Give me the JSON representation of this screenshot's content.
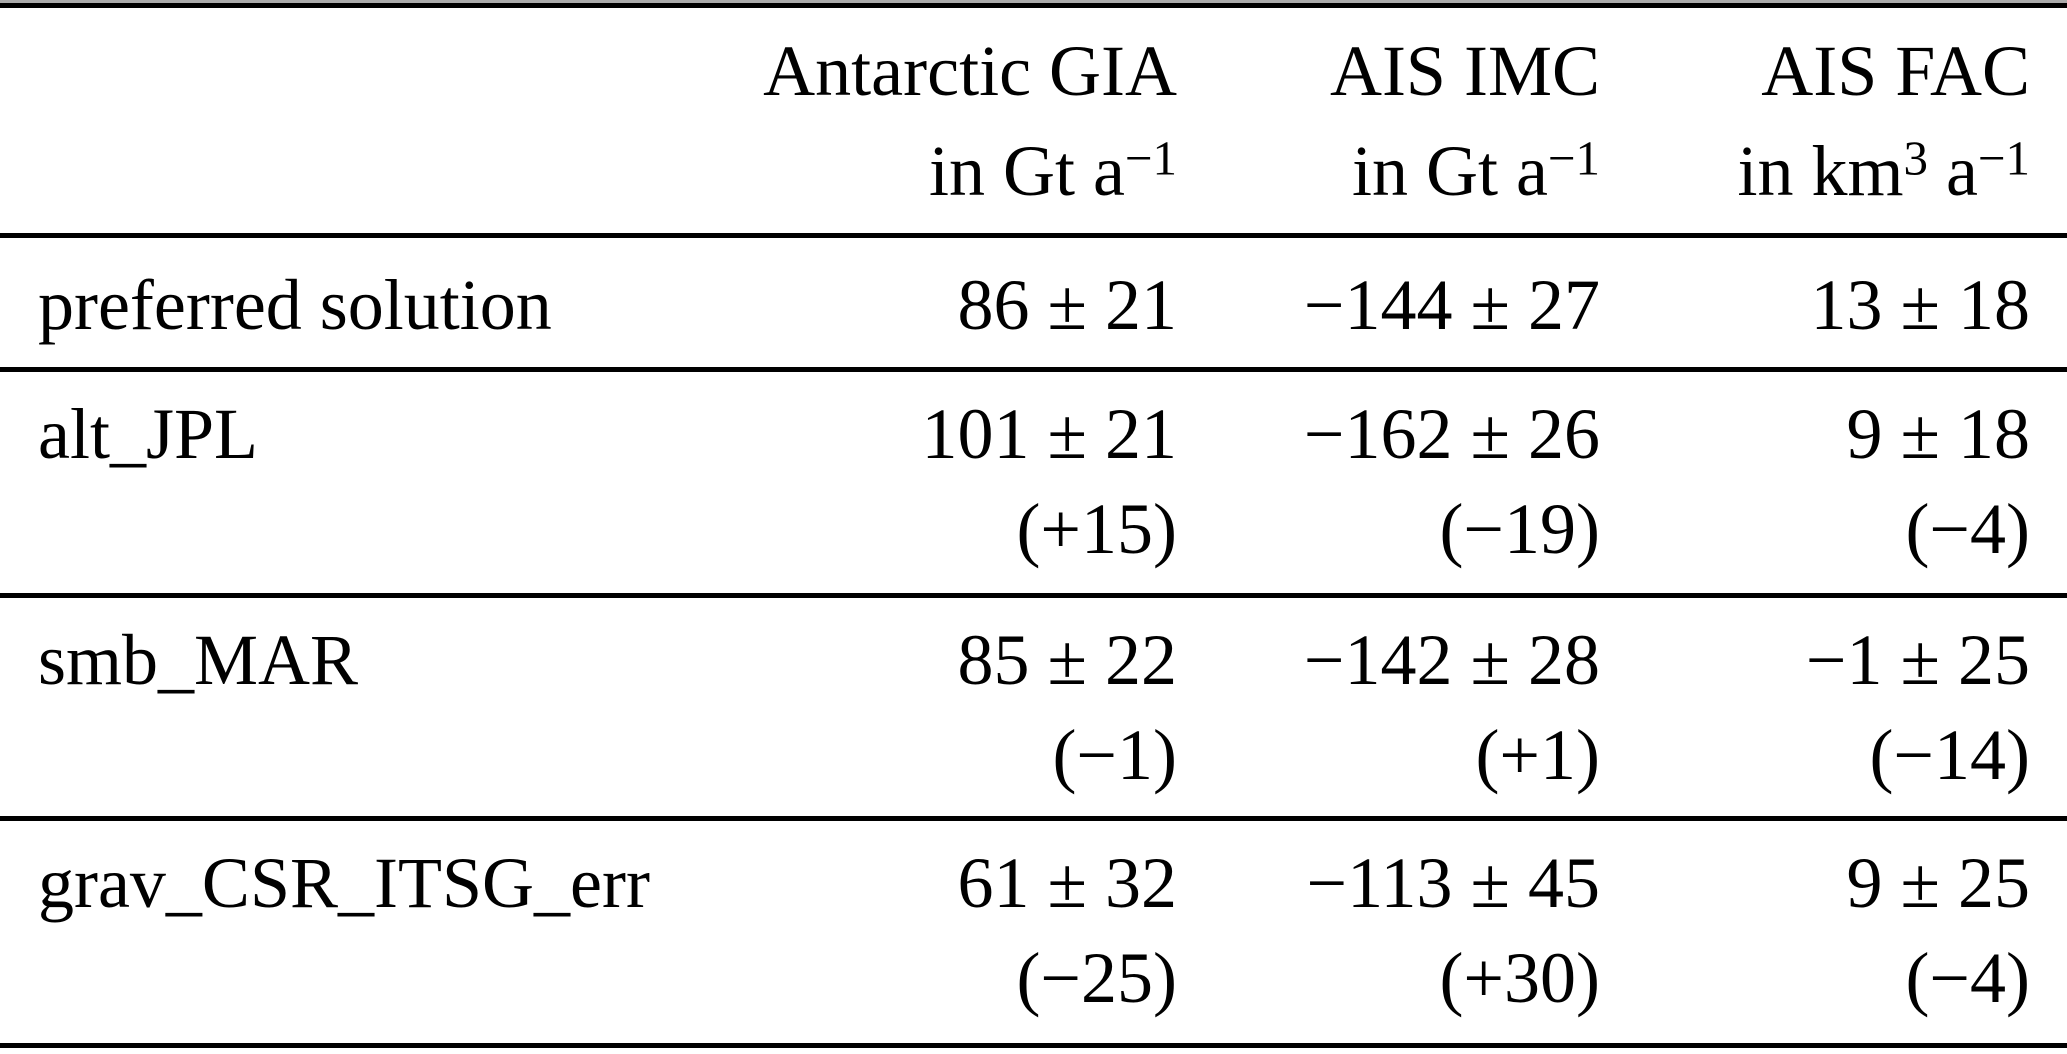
{
  "table": {
    "headers": [
      {
        "name": "Antarctic GIA",
        "unit": "in Gt a^{−1}"
      },
      {
        "name": "AIS IMC",
        "unit": "in Gt a^{−1}"
      },
      {
        "name": "AIS FAC",
        "unit": "in km^{3} a^{−1}"
      }
    ],
    "rows": [
      {
        "label": "preferred solution",
        "values": [
          "86 ± 21",
          "−144 ± 27",
          "13 ± 18"
        ],
        "deltas": [
          "",
          "",
          ""
        ]
      },
      {
        "label": "alt_JPL",
        "values": [
          "101 ± 21",
          "−162 ± 26",
          "9 ± 18"
        ],
        "deltas": [
          "(+15)",
          "(−19)",
          "(−4)"
        ]
      },
      {
        "label": "smb_MAR",
        "values": [
          "85 ± 22",
          "−142 ± 28",
          "−1 ± 25"
        ],
        "deltas": [
          "(−1)",
          "(+1)",
          "(−14)"
        ]
      },
      {
        "label": "grav_CSR_ITSG_err",
        "values": [
          "61 ± 32",
          "−113 ± 45",
          "9 ± 25"
        ],
        "deltas": [
          "(−25)",
          "(+30)",
          "(−4)"
        ]
      }
    ],
    "colors": {
      "text": "#000000",
      "rule": "#000000",
      "rule_faint": "#ababab",
      "background": "#ffffff"
    }
  }
}
